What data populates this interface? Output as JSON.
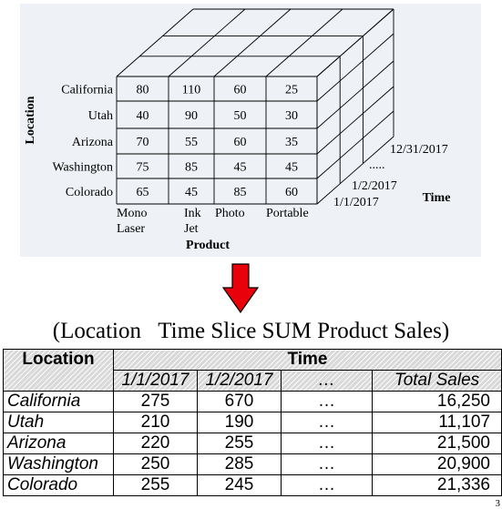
{
  "cube": {
    "axis_location_label": "Location",
    "axis_product_label": "Product",
    "axis_time_label": "Time",
    "locations": [
      "California",
      "Utah",
      "Arizona",
      "Washington",
      "Colorado"
    ],
    "products": [
      {
        "line1": "Mono",
        "line2": "Laser"
      },
      {
        "line1": "Ink",
        "line2": "Jet"
      },
      {
        "line1": "Photo",
        "line2": ""
      },
      {
        "line1": "Portable",
        "line2": ""
      }
    ],
    "time_labels": [
      "12/31/2017",
      ".....",
      "1/2/2017",
      "1/1/2017"
    ],
    "cells": [
      [
        "80",
        "110",
        "60",
        "25"
      ],
      [
        "40",
        "90",
        "50",
        "30"
      ],
      [
        "70",
        "55",
        "60",
        "35"
      ],
      [
        "75",
        "85",
        "45",
        "45"
      ],
      [
        "65",
        "45",
        "85",
        "60"
      ]
    ],
    "arrow_color": "#e8000b"
  },
  "slice_title": "(Location   Time Slice SUM Product Sales)",
  "table": {
    "header_location": "Location",
    "header_time": "Time",
    "date_headers": [
      "1/1/2017",
      "1/2/2017",
      "…",
      "Total Sales"
    ],
    "rows": [
      {
        "location": "California",
        "d1": "275",
        "d2": "670",
        "dots": "…",
        "total": "16,250"
      },
      {
        "location": "Utah",
        "d1": "210",
        "d2": "190",
        "dots": "…",
        "total": "11,107"
      },
      {
        "location": "Arizona",
        "d1": "220",
        "d2": "255",
        "dots": "…",
        "total": "21,500"
      },
      {
        "location": "Washington",
        "d1": "250",
        "d2": "285",
        "dots": "…",
        "total": "20,900"
      },
      {
        "location": "Colorado",
        "d1": "255",
        "d2": "245",
        "dots": "…",
        "total": "21,336"
      }
    ]
  },
  "page_number": "3"
}
